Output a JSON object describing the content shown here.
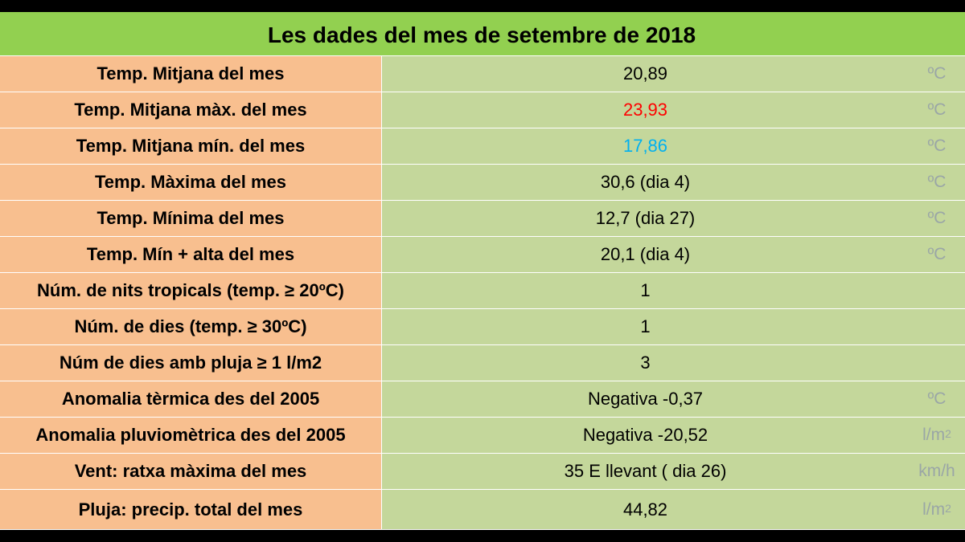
{
  "title": "Les dades del mes de setembre de 2018",
  "colors": {
    "title_bg": "#92d050",
    "label_bg": "#f8bf8f",
    "value_bg": "#c4d79b",
    "unit_text": "#9aa6a6",
    "max_value_text": "#ff0000",
    "min_value_text": "#00b0f0"
  },
  "rows": [
    {
      "label": "Temp. Mitjana del mes",
      "value": "20,89",
      "unit": "ºC",
      "unit_sup": ""
    },
    {
      "label": "Temp. Mitjana màx.  del mes",
      "value": "23,93",
      "unit": "ºC",
      "unit_sup": "",
      "value_color": "#ff0000"
    },
    {
      "label": "Temp. Mitjana mín. del mes",
      "value": "17,86",
      "unit": "ºC",
      "unit_sup": "",
      "value_color": "#00b0f0"
    },
    {
      "label": "Temp. Màxima del mes",
      "value": "30,6 (dia 4)",
      "unit": "ºC",
      "unit_sup": ""
    },
    {
      "label": "Temp. Mínima del mes",
      "value": "12,7 (dia 27)",
      "unit": "ºC",
      "unit_sup": ""
    },
    {
      "label": "Temp. Mín + alta del mes",
      "value": "20,1 (dia 4)",
      "unit": "ºC",
      "unit_sup": ""
    },
    {
      "label": "Núm. de nits tropicals (temp. ≥ 20ºC)",
      "value": "1",
      "unit": "",
      "unit_sup": ""
    },
    {
      "label": "Núm. de dies (temp. ≥  30ºC)",
      "value": "1",
      "unit": "",
      "unit_sup": ""
    },
    {
      "label": "Núm de dies amb pluja ≥ 1 l/m2",
      "value": "3",
      "unit": "",
      "unit_sup": ""
    },
    {
      "label": "Anomalia tèrmica des del 2005",
      "value": "Negativa -0,37",
      "unit": "ºC",
      "unit_sup": ""
    },
    {
      "label": "Anomalia pluviomètrica des del 2005",
      "value": "Negativa -20,52",
      "unit": "l/m",
      "unit_sup": "2"
    },
    {
      "label": "Vent: ratxa màxima del mes",
      "value": "35 E llevant ( dia 26)",
      "unit": "km/h",
      "unit_sup": ""
    },
    {
      "label": "Pluja: precip. total del mes",
      "value": "44,82",
      "unit": "l/m",
      "unit_sup": "2"
    }
  ]
}
